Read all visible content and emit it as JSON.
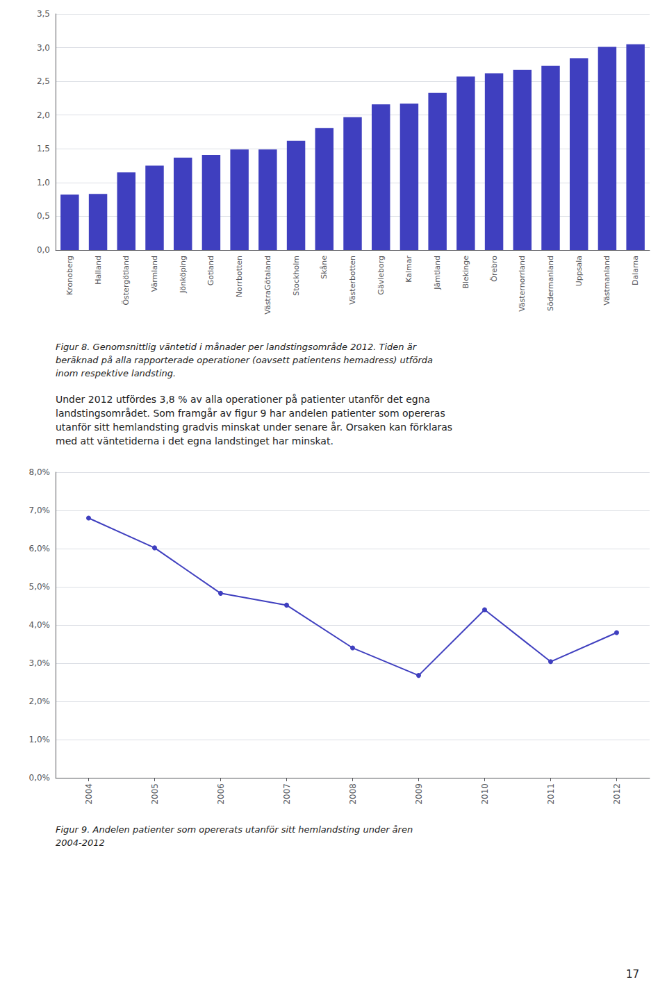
{
  "chart_data": [
    {
      "type": "bar",
      "categories": [
        "Kronoberg",
        "Halland",
        "Östergötland",
        "Värmland",
        "Jönköping",
        "Gotland",
        "Norrbotten",
        "VästraGötaland",
        "Stockholm",
        "Skåne",
        "Västerbotten",
        "Gävleborg",
        "Kalmar",
        "Jämtland",
        "Blekinge",
        "Örebro",
        "Västernorrland",
        "Södermanland",
        "Uppsala",
        "Västmanland",
        "Dalarna"
      ],
      "values": [
        0.82,
        0.83,
        1.15,
        1.25,
        1.37,
        1.41,
        1.49,
        1.49,
        1.62,
        1.81,
        1.97,
        2.16,
        2.17,
        2.33,
        2.57,
        2.62,
        2.67,
        2.73,
        2.84,
        3.01,
        3.05
      ],
      "color": "#3F3FBF",
      "ylim": [
        0,
        3.5
      ],
      "yticks": [
        {
          "value": 0.0,
          "label": "0,0"
        },
        {
          "value": 0.5,
          "label": "0,5"
        },
        {
          "value": 1.0,
          "label": "1,0"
        },
        {
          "value": 1.5,
          "label": "1,5"
        },
        {
          "value": 2.0,
          "label": "2,0"
        },
        {
          "value": 2.5,
          "label": "2,5"
        },
        {
          "value": 3.0,
          "label": "3,0"
        },
        {
          "value": 3.5,
          "label": "3,5"
        }
      ],
      "grid": true,
      "caption": [
        "Figur 8. Genomsnittlig väntetid i månader per landstingsområde 2012. Tiden är",
        "beräknad på alla rapporterade operationer (oavsett patientens hemadress) utförda",
        "inom respektive landsting."
      ]
    },
    {
      "type": "line",
      "x": [
        2004,
        2005,
        2006,
        2007,
        2008,
        2009,
        2010,
        2011,
        2012
      ],
      "values": [
        6.8,
        6.02,
        4.83,
        4.52,
        3.4,
        2.68,
        4.4,
        3.04,
        3.8
      ],
      "color": "#3F3FBF",
      "marker": "circle",
      "xlim": [
        2003.5,
        2012.5
      ],
      "xticks": [
        2004,
        2005,
        2006,
        2007,
        2008,
        2009,
        2010,
        2011,
        2012
      ],
      "ylim": [
        0.0,
        8.0
      ],
      "yticks": [
        {
          "value": 0.0,
          "label": "0,0%"
        },
        {
          "value": 1.0,
          "label": "1,0%"
        },
        {
          "value": 2.0,
          "label": "2,0%"
        },
        {
          "value": 3.0,
          "label": "3,0%"
        },
        {
          "value": 4.0,
          "label": "4,0%"
        },
        {
          "value": 5.0,
          "label": "5,0%"
        },
        {
          "value": 6.0,
          "label": "6,0%"
        },
        {
          "value": 7.0,
          "label": "7,0%"
        },
        {
          "value": 8.0,
          "label": "8,0%"
        }
      ],
      "grid": true,
      "caption": [
        "Figur 9. Andelen patienter som opererats utanför sitt hemlandsting under åren",
        "2004-2012"
      ]
    }
  ],
  "text": [
    "Under 2012 utfördes 3,8 % av alla operationer på patienter utanför det egna",
    "landstingsområdet. Som framgår av figur 9 har andelen patienter som opereras",
    "utanför sitt hemlandsting gradvis minskat under senare år. Orsaken kan förklaras",
    "med att väntetiderna i det egna landstinget har minskat."
  ],
  "page_number": "17"
}
